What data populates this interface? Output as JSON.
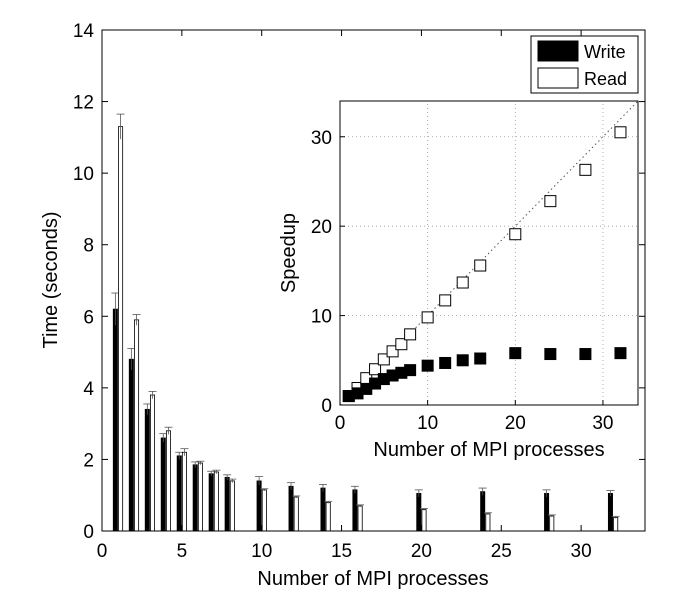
{
  "chart_data": [
    {
      "type": "bar",
      "xlabel": "Number of MPI processes",
      "ylabel": "Time (seconds)",
      "xlim": [
        0,
        34
      ],
      "ylim": [
        0,
        14
      ],
      "xticks": [
        0,
        5,
        10,
        15,
        20,
        25,
        30
      ],
      "yticks": [
        0,
        2,
        4,
        6,
        8,
        10,
        12,
        14
      ],
      "x": [
        1,
        2,
        3,
        4,
        5,
        6,
        7,
        8,
        10,
        12,
        14,
        16,
        20,
        24,
        28,
        32
      ],
      "error_bars": true,
      "legend_position": "top-right",
      "series": [
        {
          "name": "Write",
          "fill": "#000000",
          "values": [
            6.2,
            4.8,
            3.4,
            2.6,
            2.1,
            1.85,
            1.6,
            1.5,
            1.4,
            1.25,
            1.2,
            1.15,
            1.05,
            1.1,
            1.05,
            1.05
          ],
          "errors": [
            0.45,
            0.3,
            0.15,
            0.12,
            0.1,
            0.08,
            0.07,
            0.07,
            0.12,
            0.1,
            0.1,
            0.1,
            0.1,
            0.1,
            0.1,
            0.08
          ]
        },
        {
          "name": "Read",
          "fill": "#ffffff",
          "values": [
            11.3,
            5.9,
            3.8,
            2.8,
            2.2,
            1.9,
            1.65,
            1.4,
            1.15,
            0.95,
            0.8,
            0.7,
            0.6,
            0.48,
            0.42,
            0.38
          ],
          "errors": [
            0.35,
            0.15,
            0.1,
            0.1,
            0.1,
            0.05,
            0.05,
            0.05,
            0.03,
            0.03,
            0.03,
            0.03,
            0.03,
            0.03,
            0.03,
            0.03
          ]
        }
      ]
    },
    {
      "type": "scatter",
      "xlabel": "Number of MPI processes",
      "ylabel": "Speedup",
      "xlim": [
        0,
        34
      ],
      "ylim": [
        0,
        34
      ],
      "xticks": [
        0,
        10,
        20,
        30
      ],
      "yticks": [
        0,
        10,
        20,
        30
      ],
      "grid": true,
      "x": [
        1,
        2,
        3,
        4,
        5,
        6,
        7,
        8,
        10,
        12,
        14,
        16,
        20,
        24,
        28,
        32
      ],
      "reference_line": {
        "x": [
          0,
          34
        ],
        "y": [
          0,
          34
        ],
        "style": "dotted"
      },
      "series": [
        {
          "name": "Read",
          "marker": "open-square",
          "values": [
            1.0,
            1.9,
            3.0,
            4.0,
            5.1,
            6.0,
            6.8,
            7.9,
            9.8,
            11.7,
            13.7,
            15.6,
            19.1,
            22.8,
            26.3,
            30.5
          ]
        },
        {
          "name": "Write",
          "marker": "filled-square",
          "values": [
            1.0,
            1.3,
            1.8,
            2.4,
            2.9,
            3.3,
            3.6,
            3.9,
            4.4,
            4.7,
            5.0,
            5.2,
            5.8,
            5.7,
            5.7,
            5.8
          ]
        }
      ]
    }
  ]
}
